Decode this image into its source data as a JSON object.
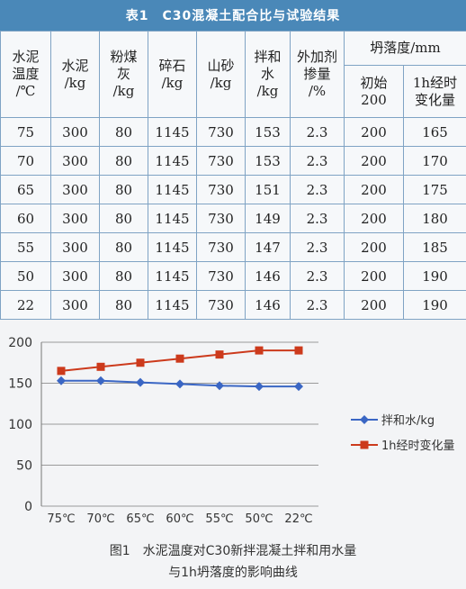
{
  "table": {
    "title": "表1　C30混凝土配合比与试验结果",
    "headers": {
      "temp": [
        "水泥",
        "温度",
        "/℃"
      ],
      "cement": [
        "水泥",
        "/kg"
      ],
      "flyash": [
        "粉煤",
        "灰",
        "/kg"
      ],
      "gravel": [
        "碎石",
        "/kg"
      ],
      "sand": [
        "山砂",
        "/kg"
      ],
      "water": [
        "拌和",
        "水",
        "/kg"
      ],
      "admix": [
        "外加剂",
        "掺量",
        "/%"
      ],
      "slump_group": "坍落度/mm",
      "slump_init": [
        "初始",
        "200"
      ],
      "slump_1h": [
        "1h经时",
        "变化量"
      ]
    },
    "rows": [
      [
        "75",
        "300",
        "80",
        "1145",
        "730",
        "153",
        "2.3",
        "200",
        "165"
      ],
      [
        "70",
        "300",
        "80",
        "1145",
        "730",
        "153",
        "2.3",
        "200",
        "170"
      ],
      [
        "65",
        "300",
        "80",
        "1145",
        "730",
        "151",
        "2.3",
        "200",
        "175"
      ],
      [
        "60",
        "300",
        "80",
        "1145",
        "730",
        "149",
        "2.3",
        "200",
        "180"
      ],
      [
        "55",
        "300",
        "80",
        "1145",
        "730",
        "147",
        "2.3",
        "200",
        "185"
      ],
      [
        "50",
        "300",
        "80",
        "1145",
        "730",
        "146",
        "2.3",
        "200",
        "190"
      ],
      [
        "22",
        "300",
        "80",
        "1145",
        "730",
        "146",
        "2.3",
        "200",
        "190"
      ]
    ]
  },
  "chart_data": {
    "type": "line",
    "categories": [
      "75℃",
      "70℃",
      "65℃",
      "60℃",
      "55℃",
      "50℃",
      "22℃"
    ],
    "ylim": [
      0,
      200
    ],
    "yticks": [
      "0",
      "50",
      "100",
      "150",
      "200"
    ],
    "grid": true,
    "legend_position": "right",
    "series": [
      {
        "name": "拌和水/kg",
        "color": "#3a66c4",
        "marker": "diamond",
        "values": [
          153,
          153,
          151,
          149,
          147,
          146,
          146
        ]
      },
      {
        "name": "1h经时变化量",
        "color": "#cc3a1c",
        "marker": "square",
        "values": [
          165,
          170,
          175,
          180,
          185,
          190,
          190
        ]
      }
    ]
  },
  "caption": {
    "line1": "图1　水泥温度对C30新拌混凝土拌和用水量",
    "line2": "与1h坍落度的影响曲线"
  }
}
